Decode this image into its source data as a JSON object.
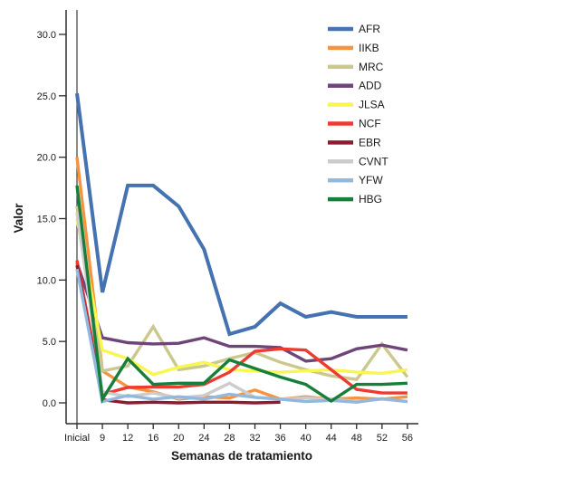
{
  "chart_data": {
    "type": "line",
    "title": "",
    "xlabel": "Semanas de tratamiento",
    "ylabel": "Valor",
    "x_ticklabels": [
      "Inicial",
      "9",
      "12",
      "16",
      "20",
      "24",
      "28",
      "32",
      "36",
      "40",
      "44",
      "48",
      "52",
      "56"
    ],
    "y_ticks": [
      0,
      5,
      10,
      15,
      20,
      25,
      30
    ],
    "y_ticklabels": [
      "0.0",
      "5.0",
      "10.0",
      "15.0",
      "20.0",
      "25.0",
      "30.0"
    ],
    "ylim": [
      0,
      31.5
    ],
    "grid": false,
    "legend_position": "top-right",
    "reference_line_at": "Inicial",
    "axis_color": "#2b2b2b",
    "text_color": "#1a1a1a",
    "series": [
      {
        "name": "AFR",
        "color": "#4572b0",
        "values": [
          25.2,
          9.0,
          17.7,
          17.7,
          16.0,
          12.5,
          5.6,
          6.2,
          8.1,
          7.0,
          7.4,
          7.0,
          7.0,
          7.0
        ]
      },
      {
        "name": "IIKB",
        "color": "#f59440",
        "values": [
          20.0,
          2.6,
          1.3,
          0.9,
          0.3,
          0.5,
          0.4,
          1.05,
          0.3,
          0.5,
          0.3,
          0.4,
          0.3,
          0.5
        ]
      },
      {
        "name": "MRC",
        "color": "#cbc88f",
        "values": [
          16.0,
          2.6,
          3.0,
          6.2,
          2.7,
          3.0,
          3.6,
          4.1,
          3.3,
          2.7,
          2.2,
          1.9,
          4.8,
          2.1
        ]
      },
      {
        "name": "ADD",
        "color": "#6e4579",
        "values": [
          11.4,
          5.3,
          4.9,
          4.8,
          4.85,
          5.3,
          4.6,
          4.6,
          4.5,
          3.4,
          3.6,
          4.4,
          4.7,
          4.3
        ]
      },
      {
        "name": "JLSA",
        "color": "#f9f651",
        "values": [
          15.0,
          4.3,
          3.6,
          2.3,
          2.9,
          3.3,
          2.7,
          2.6,
          2.5,
          2.6,
          2.7,
          2.5,
          2.4,
          2.7
        ]
      },
      {
        "name": "NCF",
        "color": "#ee3a30",
        "values": [
          11.6,
          0.7,
          1.25,
          1.3,
          1.3,
          1.5,
          2.5,
          4.2,
          4.4,
          4.3,
          2.7,
          1.1,
          0.8,
          0.8
        ]
      },
      {
        "name": "EBR",
        "color": "#8f1b33",
        "values": [
          11.2,
          0.25,
          0.0,
          0.05,
          0.0,
          0.05,
          0.05,
          0.0,
          0.05,
          null,
          null,
          null,
          null,
          null
        ]
      },
      {
        "name": "CVNT",
        "color": "#cccccc",
        "values": [
          15.5,
          0.9,
          0.5,
          0.8,
          0.4,
          0.6,
          1.6,
          0.45,
          0.3,
          0.4,
          0.3,
          0.1,
          0.3,
          0.1
        ]
      },
      {
        "name": "YFW",
        "color": "#92b8dd",
        "values": [
          10.9,
          0.1,
          0.6,
          0.3,
          0.5,
          0.3,
          0.7,
          0.45,
          0.3,
          0.1,
          0.2,
          0.05,
          0.35,
          0.1
        ]
      },
      {
        "name": "HBG",
        "color": "#157f3b",
        "values": [
          17.7,
          0.3,
          3.6,
          1.5,
          1.6,
          1.6,
          3.5,
          2.8,
          2.1,
          1.5,
          0.15,
          1.5,
          1.5,
          1.6
        ]
      }
    ]
  }
}
